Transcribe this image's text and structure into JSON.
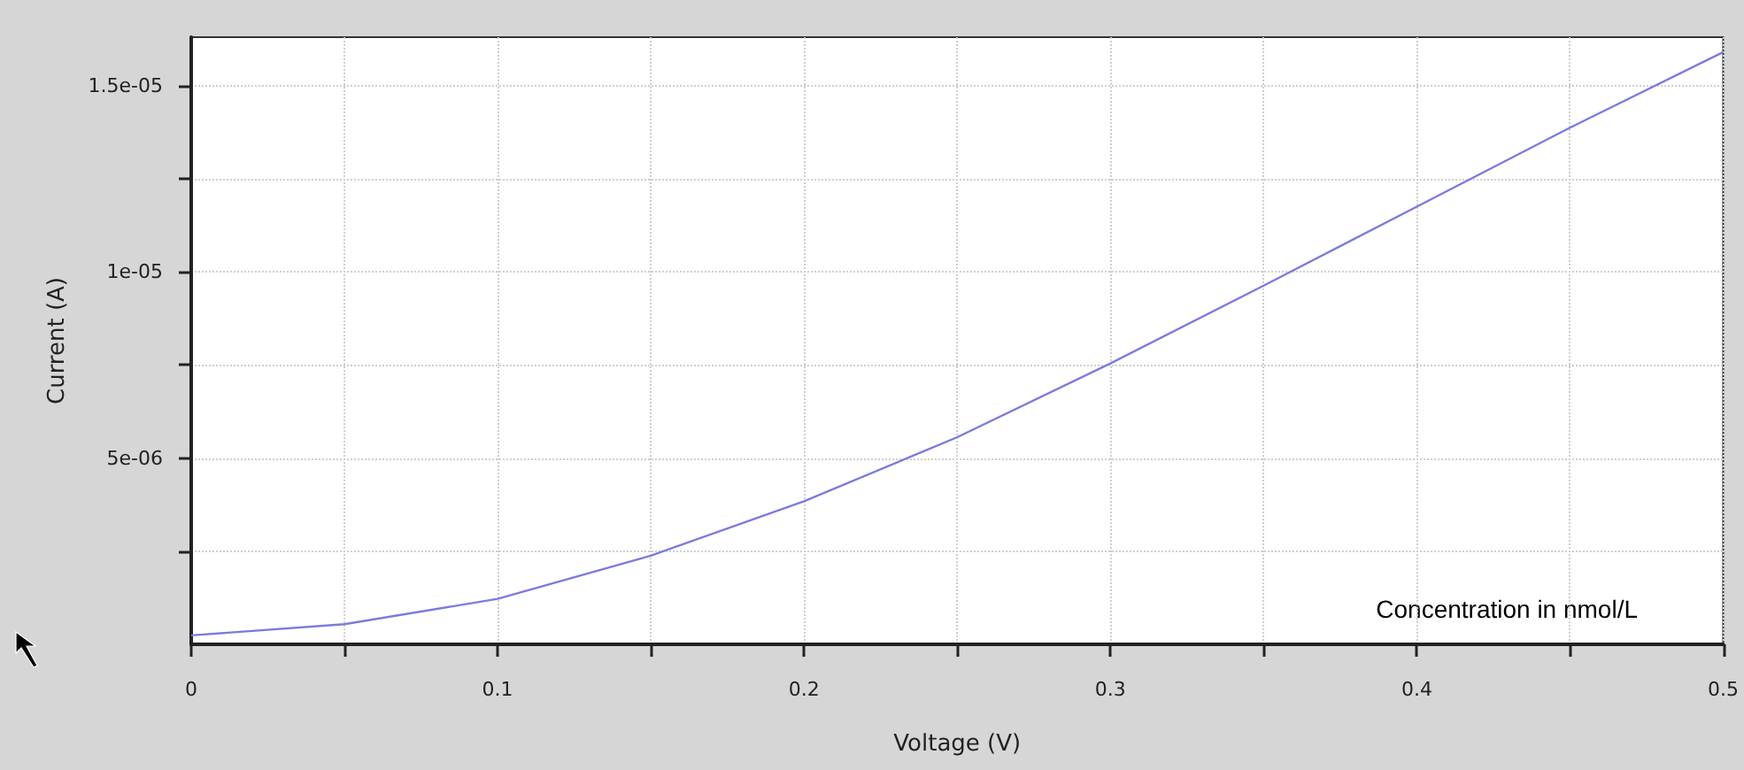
{
  "chart_data": {
    "type": "line",
    "xlabel": "Voltage (V)",
    "ylabel": "Current (A)",
    "annotations": [
      "Concentration in nmol/L"
    ],
    "x": [
      0,
      0.05,
      0.1,
      0.15,
      0.2,
      0.25,
      0.3,
      0.35,
      0.4,
      0.45,
      0.5
    ],
    "series": [
      {
        "color": "#7b7bdf",
        "values": [
          2.4e-07,
          5.4e-07,
          1.22e-06,
          2.38e-06,
          3.84e-06,
          5.56e-06,
          7.54e-06,
          9.63e-06,
          1.175e-05,
          1.387e-05,
          1.59e-05
        ]
      }
    ],
    "xlim": [
      0,
      0.5
    ],
    "xticks": [
      0,
      {
        "value": 0.05,
        "label": null
      },
      0.1,
      {
        "value": 0.15,
        "label": null
      },
      0.2,
      {
        "value": 0.25,
        "label": null
      },
      0.3,
      {
        "value": 0.35,
        "label": null
      },
      0.4,
      {
        "value": 0.45,
        "label": null
      },
      0.5
    ],
    "ylim": [
      0,
      1.63e-05
    ],
    "yticks": [
      {
        "value": 2.5e-06,
        "label": null
      },
      {
        "value": 5e-06,
        "label": "5e-06"
      },
      {
        "value": 7.5e-06,
        "label": null
      },
      {
        "value": 1e-05,
        "label": "1e-05"
      },
      {
        "value": 1.25e-05,
        "label": null
      },
      {
        "value": 1.5e-05,
        "label": "1.5e-05"
      }
    ],
    "grid": true,
    "marker": "none"
  }
}
